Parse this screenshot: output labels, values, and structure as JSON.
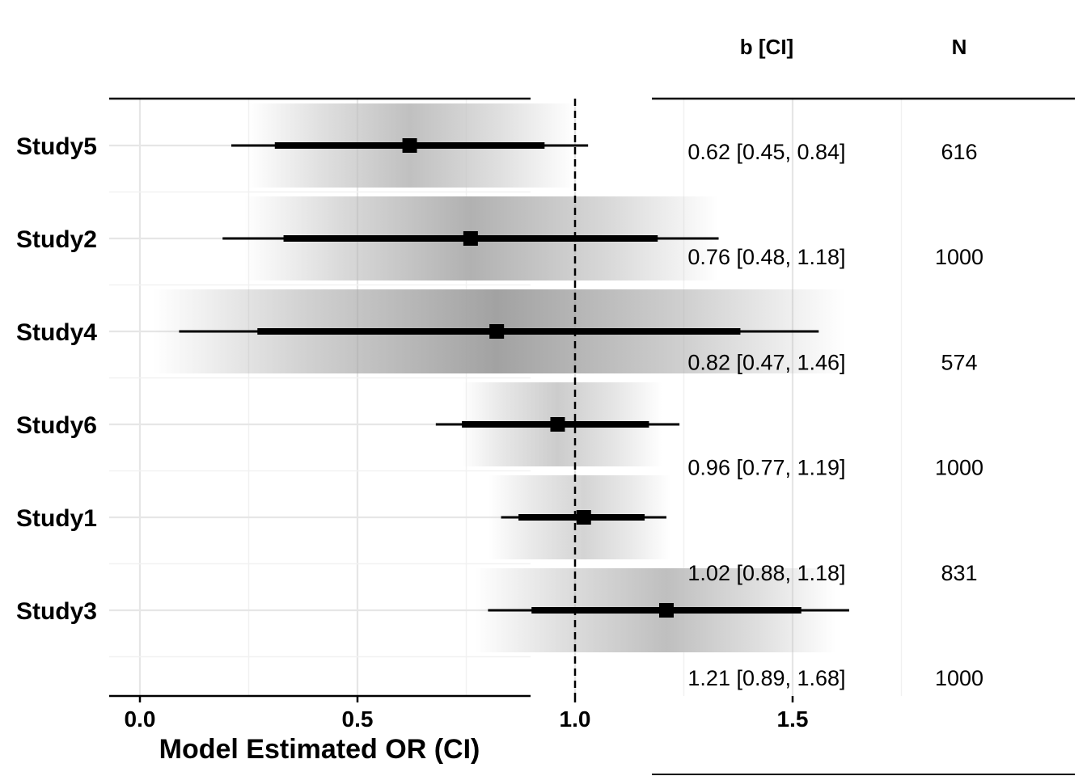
{
  "chart_data": {
    "type": "forest",
    "xlabel": "Model Estimated OR (CI)",
    "xlim": [
      -0.14,
      1.8
    ],
    "xticks": [
      0.0,
      0.5,
      1.0,
      1.5
    ],
    "xtick_labels": [
      "0.0",
      "0.5",
      "1.0",
      "1.5"
    ],
    "reference_line": 1.0,
    "grid": true,
    "studies": [
      {
        "name": "Study5",
        "estimate": 0.62,
        "inner_ci": [
          0.31,
          0.93
        ],
        "outer_ci": [
          0.21,
          1.03
        ],
        "band": [
          0.25,
          1.0
        ]
      },
      {
        "name": "Study2",
        "estimate": 0.76,
        "inner_ci": [
          0.33,
          1.19
        ],
        "outer_ci": [
          0.19,
          1.33
        ],
        "band": [
          0.24,
          1.33
        ]
      },
      {
        "name": "Study4",
        "estimate": 0.82,
        "inner_ci": [
          0.27,
          1.38
        ],
        "outer_ci": [
          0.09,
          1.56
        ],
        "band": [
          0.03,
          1.62
        ]
      },
      {
        "name": "Study6",
        "estimate": 0.96,
        "inner_ci": [
          0.74,
          1.17
        ],
        "outer_ci": [
          0.68,
          1.24
        ],
        "band": [
          0.74,
          1.2
        ]
      },
      {
        "name": "Study1",
        "estimate": 1.02,
        "inner_ci": [
          0.87,
          1.16
        ],
        "outer_ci": [
          0.83,
          1.21
        ],
        "band": [
          0.8,
          1.22
        ]
      },
      {
        "name": "Study3",
        "estimate": 1.21,
        "inner_ci": [
          0.9,
          1.52
        ],
        "outer_ci": [
          0.8,
          1.63
        ],
        "band": [
          0.77,
          1.6
        ]
      }
    ]
  },
  "table": {
    "headers": {
      "b_ci": "b [CI]",
      "n": "N"
    },
    "rows": [
      {
        "b_ci": "0.62 [0.45, 0.84]",
        "n": "616"
      },
      {
        "b_ci": "0.76 [0.48, 1.18]",
        "n": "1000"
      },
      {
        "b_ci": "0.82 [0.47, 1.46]",
        "n": "574"
      },
      {
        "b_ci": "0.96 [0.77, 1.19]",
        "n": "1000"
      },
      {
        "b_ci": "1.02 [0.88, 1.18]",
        "n": "831"
      },
      {
        "b_ci": "1.21 [0.89, 1.68]",
        "n": "1000"
      }
    ]
  }
}
